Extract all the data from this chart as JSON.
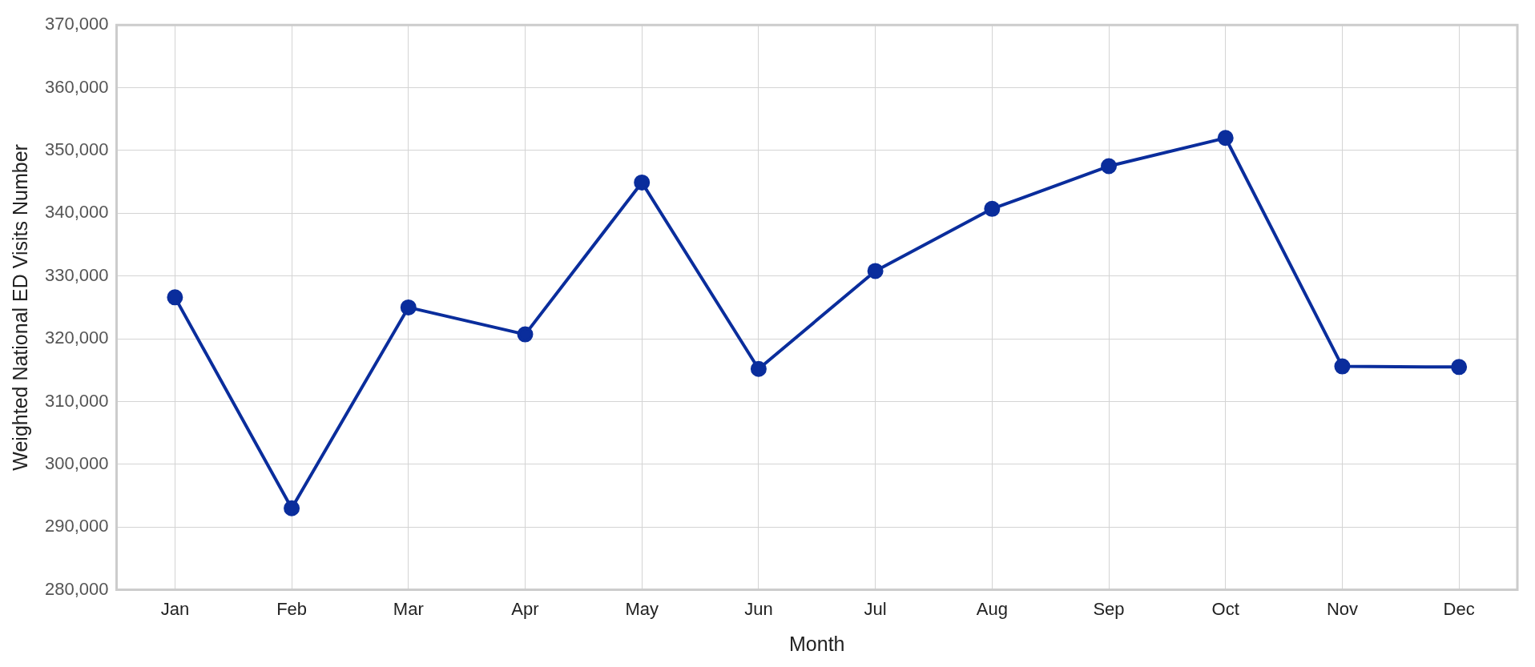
{
  "chart_data": {
    "type": "line",
    "xlabel": "Month",
    "ylabel": "Weighted National ED Visits Number",
    "categories": [
      "Jan",
      "Feb",
      "Mar",
      "Apr",
      "May",
      "Jun",
      "Jul",
      "Aug",
      "Sep",
      "Oct",
      "Nov",
      "Dec"
    ],
    "series": [
      {
        "color": "#0a2d9c",
        "values": [
          326600,
          293000,
          325000,
          320700,
          344900,
          315200,
          330800,
          340700,
          347500,
          352000,
          315600,
          315500
        ]
      }
    ],
    "ylim": [
      280000,
      370000
    ],
    "yticks": [
      {
        "value": 280000,
        "label": "280,000"
      },
      {
        "value": 290000,
        "label": "290,000"
      },
      {
        "value": 300000,
        "label": "300,000"
      },
      {
        "value": 310000,
        "label": "310,000"
      },
      {
        "value": 320000,
        "label": "320,000"
      },
      {
        "value": 330000,
        "label": "330,000"
      },
      {
        "value": 340000,
        "label": "340,000"
      },
      {
        "value": 350000,
        "label": "350,000"
      },
      {
        "value": 360000,
        "label": "360,000"
      },
      {
        "value": 370000,
        "label": "370,000"
      }
    ],
    "grid": true,
    "legend": false,
    "marker": "circle",
    "line_style": "solid"
  }
}
